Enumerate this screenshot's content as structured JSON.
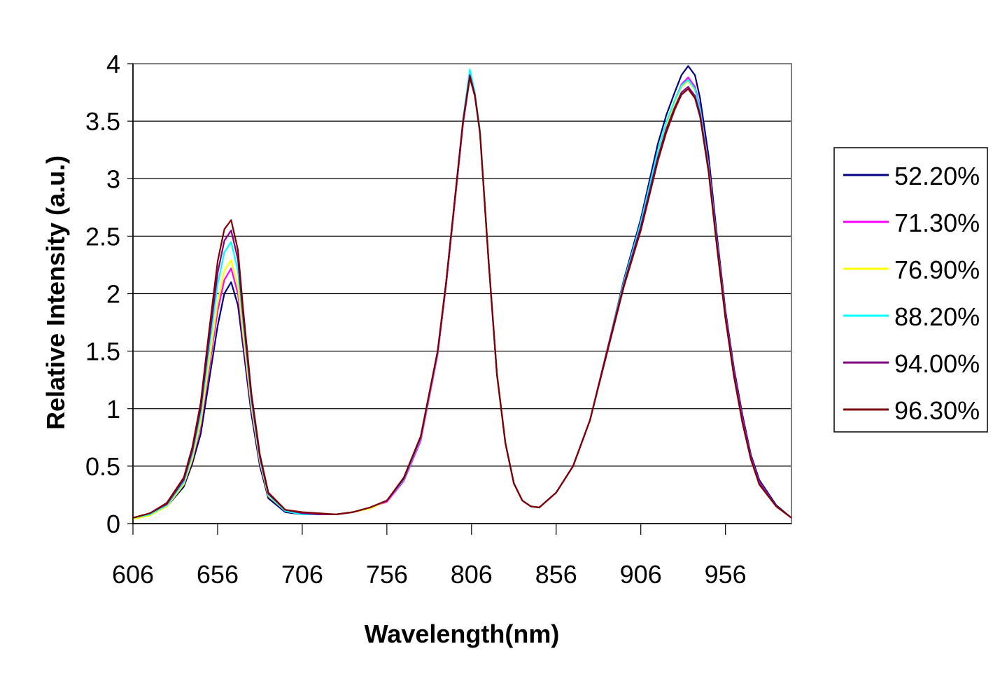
{
  "chart_data": {
    "type": "line",
    "title": "",
    "xlabel": "Wavelength(nm)",
    "ylabel": "Relative Intensity (a.u.)",
    "xlim": [
      606,
      995
    ],
    "ylim": [
      0,
      4
    ],
    "x_ticks": [
      606,
      656,
      706,
      756,
      806,
      856,
      906,
      956
    ],
    "y_ticks": [
      0,
      0.5,
      1,
      1.5,
      2,
      2.5,
      3,
      3.5,
      4
    ],
    "y_tick_labels": [
      "0",
      "0.5",
      "1",
      "1.5",
      "2",
      "2.5",
      "3",
      "3.5",
      "4"
    ],
    "grid": {
      "horizontal": true,
      "vertical": false
    },
    "legend_position": "right",
    "x": [
      606,
      616,
      626,
      636,
      641,
      646,
      651,
      656,
      660,
      664,
      668,
      671,
      676,
      681,
      686,
      696,
      706,
      716,
      726,
      736,
      746,
      756,
      766,
      776,
      786,
      791,
      796,
      801,
      805,
      808,
      811,
      816,
      821,
      826,
      831,
      836,
      841,
      846,
      856,
      866,
      876,
      886,
      896,
      906,
      916,
      921,
      926,
      930,
      934,
      938,
      941,
      946,
      951,
      956,
      961,
      966,
      971,
      976,
      986,
      995
    ],
    "series": [
      {
        "name": "52.20%",
        "color": "#000080",
        "values": [
          0.05,
          0.08,
          0.15,
          0.32,
          0.52,
          0.78,
          1.25,
          1.72,
          2.0,
          2.1,
          1.9,
          1.55,
          0.95,
          0.5,
          0.22,
          0.1,
          0.08,
          0.08,
          0.08,
          0.1,
          0.14,
          0.2,
          0.38,
          0.74,
          1.48,
          2.08,
          2.78,
          3.48,
          3.88,
          3.72,
          3.4,
          2.3,
          1.3,
          0.7,
          0.35,
          0.2,
          0.15,
          0.14,
          0.27,
          0.5,
          0.9,
          1.5,
          2.12,
          2.65,
          3.3,
          3.55,
          3.75,
          3.9,
          3.98,
          3.9,
          3.7,
          3.2,
          2.5,
          1.85,
          1.35,
          0.95,
          0.6,
          0.38,
          0.16,
          0.05
        ]
      },
      {
        "name": "71.30%",
        "color": "#FF00FF",
        "values": [
          0.05,
          0.08,
          0.16,
          0.34,
          0.55,
          0.85,
          1.35,
          1.85,
          2.12,
          2.22,
          2.0,
          1.62,
          1.0,
          0.53,
          0.24,
          0.11,
          0.08,
          0.08,
          0.08,
          0.1,
          0.14,
          0.19,
          0.37,
          0.72,
          1.47,
          2.08,
          2.78,
          3.48,
          3.9,
          3.72,
          3.4,
          2.3,
          1.3,
          0.7,
          0.35,
          0.2,
          0.15,
          0.14,
          0.27,
          0.5,
          0.9,
          1.5,
          2.1,
          2.6,
          3.22,
          3.48,
          3.68,
          3.82,
          3.88,
          3.8,
          3.62,
          3.12,
          2.45,
          1.82,
          1.32,
          0.92,
          0.58,
          0.36,
          0.15,
          0.05
        ]
      },
      {
        "name": "76.90%",
        "color": "#FFFF00",
        "values": [
          0.04,
          0.07,
          0.15,
          0.34,
          0.56,
          0.88,
          1.4,
          1.92,
          2.2,
          2.29,
          2.07,
          1.66,
          1.02,
          0.54,
          0.24,
          0.11,
          0.08,
          0.08,
          0.08,
          0.1,
          0.13,
          0.2,
          0.39,
          0.76,
          1.5,
          2.1,
          2.8,
          3.5,
          3.91,
          3.73,
          3.4,
          2.3,
          1.3,
          0.7,
          0.35,
          0.2,
          0.15,
          0.14,
          0.27,
          0.5,
          0.9,
          1.5,
          2.1,
          2.6,
          3.2,
          3.46,
          3.66,
          3.8,
          3.85,
          3.77,
          3.6,
          3.1,
          2.43,
          1.8,
          1.3,
          0.9,
          0.57,
          0.35,
          0.15,
          0.05
        ]
      },
      {
        "name": "88.20%",
        "color": "#00FFFF",
        "values": [
          0.05,
          0.08,
          0.16,
          0.36,
          0.6,
          0.95,
          1.52,
          2.08,
          2.36,
          2.45,
          2.2,
          1.76,
          1.06,
          0.56,
          0.25,
          0.11,
          0.08,
          0.08,
          0.08,
          0.1,
          0.14,
          0.2,
          0.38,
          0.74,
          1.49,
          2.1,
          2.8,
          3.52,
          3.95,
          3.75,
          3.42,
          2.3,
          1.3,
          0.7,
          0.35,
          0.2,
          0.15,
          0.14,
          0.27,
          0.5,
          0.9,
          1.5,
          2.1,
          2.62,
          3.24,
          3.49,
          3.68,
          3.81,
          3.86,
          3.78,
          3.6,
          3.1,
          2.43,
          1.8,
          1.3,
          0.9,
          0.57,
          0.35,
          0.15,
          0.05
        ]
      },
      {
        "name": "94.00%",
        "color": "#800080",
        "values": [
          0.05,
          0.09,
          0.17,
          0.38,
          0.63,
          1.0,
          1.6,
          2.18,
          2.46,
          2.55,
          2.3,
          1.82,
          1.1,
          0.58,
          0.26,
          0.12,
          0.09,
          0.08,
          0.08,
          0.1,
          0.14,
          0.2,
          0.39,
          0.75,
          1.5,
          2.1,
          2.8,
          3.5,
          3.9,
          3.73,
          3.4,
          2.3,
          1.3,
          0.7,
          0.35,
          0.2,
          0.15,
          0.14,
          0.27,
          0.5,
          0.9,
          1.5,
          2.08,
          2.58,
          3.18,
          3.43,
          3.62,
          3.75,
          3.8,
          3.72,
          3.56,
          3.08,
          2.42,
          1.8,
          1.3,
          0.9,
          0.57,
          0.35,
          0.15,
          0.05
        ]
      },
      {
        "name": "96.30%",
        "color": "#800000",
        "values": [
          0.05,
          0.09,
          0.18,
          0.4,
          0.66,
          1.05,
          1.68,
          2.28,
          2.56,
          2.64,
          2.38,
          1.88,
          1.13,
          0.6,
          0.27,
          0.12,
          0.1,
          0.09,
          0.08,
          0.1,
          0.14,
          0.2,
          0.4,
          0.76,
          1.5,
          2.1,
          2.8,
          3.5,
          3.88,
          3.72,
          3.4,
          2.3,
          1.3,
          0.7,
          0.35,
          0.2,
          0.15,
          0.14,
          0.27,
          0.5,
          0.9,
          1.48,
          2.06,
          2.55,
          3.15,
          3.4,
          3.6,
          3.73,
          3.78,
          3.7,
          3.54,
          3.06,
          2.4,
          1.78,
          1.28,
          0.88,
          0.56,
          0.34,
          0.15,
          0.05
        ]
      }
    ]
  }
}
